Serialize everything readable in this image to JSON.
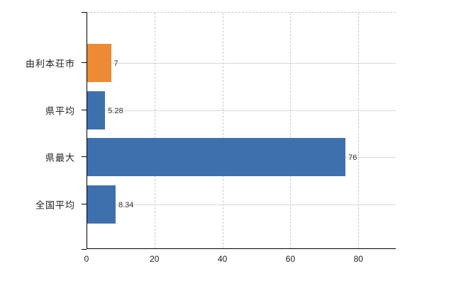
{
  "page": {
    "background_color": "#ffffff",
    "title": ""
  },
  "chart_data": {
    "type": "bar",
    "orientation": "horizontal",
    "title": "",
    "xlabel": "",
    "ylabel": "",
    "categories": [
      "由利本荘市",
      "県平均",
      "県最大",
      "全国平均"
    ],
    "values": [
      7,
      5.28,
      76,
      8.34
    ],
    "value_labels": [
      "7",
      "5.28",
      "76",
      "8.34"
    ],
    "highlight_category": "由利本荘市",
    "xticks": [
      0,
      20,
      40,
      60,
      80
    ],
    "xtick_labels": [
      "0",
      "20",
      "40",
      "60",
      "80"
    ],
    "xlim": [
      0,
      91
    ],
    "legend": "none",
    "grid": {
      "vertical": "dashed",
      "horizontal": "solid",
      "top_border": "dashed"
    },
    "colors": {
      "highlight_bar": "#ec8b33",
      "default_bar": "#3e70ae",
      "axis": "#000000",
      "gridline_solid": "#d9d9d9",
      "gridline_dashed": "#cccccc",
      "value_text": "#333333",
      "label_text": "#222222"
    }
  }
}
